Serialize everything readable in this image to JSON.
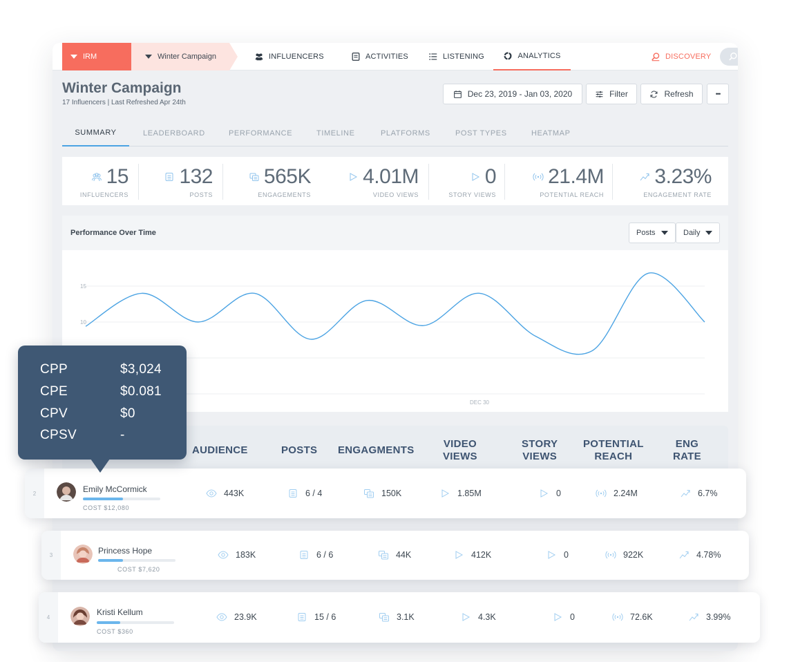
{
  "topbar": {
    "irm_label": "IRM",
    "campaign_label": "Winter Campaign",
    "nav": [
      {
        "label": "INFLUENCERS",
        "icon": "people-icon"
      },
      {
        "label": "ACTIVITIES",
        "icon": "document-icon"
      },
      {
        "label": "LISTENING",
        "icon": "list-icon"
      },
      {
        "label": "ANALYTICS",
        "icon": "analytics-icon"
      }
    ],
    "discovery_label": "DISCOVERY"
  },
  "header": {
    "title": "Winter Campaign",
    "subtitle": "17 Influencers | Last Refreshed Apr 24th",
    "date_range": "Dec 23, 2019 - Jan 03, 2020",
    "filter_label": "Filter",
    "refresh_label": "Refresh",
    "more_label": "•••"
  },
  "tabs": [
    "SUMMARY",
    "LEADERBOARD",
    "PERFORMANCE",
    "TIMELINE",
    "PLATFORMS",
    "POST TYPES",
    "HEATMAP"
  ],
  "stats": [
    {
      "value": "15",
      "label": "INFLUENCERS",
      "icon": "people-icon"
    },
    {
      "value": "132",
      "label": "POSTS",
      "icon": "document-icon"
    },
    {
      "value": "565K",
      "label": "ENGAGEMENTS",
      "icon": "chat-icon"
    },
    {
      "value": "4.01M",
      "label": "VIDEO VIEWS",
      "icon": "play-icon"
    },
    {
      "value": "0",
      "label": "STORY VIEWS",
      "icon": "play-icon"
    },
    {
      "value": "21.4M",
      "label": "POTENTIAL REACH",
      "icon": "broadcast-icon"
    },
    {
      "value": "3.23%",
      "label": "ENGAGEMENT RATE",
      "icon": "trend-icon"
    }
  ],
  "chart": {
    "title": "Performance Over Time",
    "metric_select": "Posts",
    "interval_select": "Daily"
  },
  "chart_data": {
    "type": "line",
    "title": "Performance Over Time",
    "ylabel": "",
    "xlabel": "",
    "y_ticks": [
      "15",
      "10"
    ],
    "x_tick_labels": [
      "DEC 30"
    ],
    "ylim": [
      0,
      20
    ],
    "series": [
      {
        "values": [
          9.4,
          14.0,
          10.0,
          14.0,
          7.6,
          13.0,
          9.5,
          14.0,
          8.0,
          6.0,
          16.8,
          10.0
        ]
      }
    ],
    "color": "#4ba3e3",
    "grid": true
  },
  "table": {
    "headers": [
      "AUDIENCE",
      "POSTS",
      "ENGAGMENTS",
      "VIDEO\nVIEWS",
      "STORY\nVIEWS",
      "POTENTIAL\nREACH",
      "ENG\nRATE"
    ],
    "rows": [
      {
        "index": "2",
        "name": "Emily McCormick",
        "cost": "COST $12,080",
        "cost_fill": 0.52,
        "audience": "443K",
        "posts": "6 / 4",
        "engagements": "150K",
        "video_views": "1.85M",
        "story_views": "0",
        "reach": "2.24M",
        "eng_rate": "6.7%"
      },
      {
        "index": "3",
        "name": "Princess Hope",
        "cost": "COST $7,620",
        "cost_fill": 0.32,
        "audience": "183K",
        "posts": "6 / 6",
        "engagements": "44K",
        "video_views": "412K",
        "story_views": "0",
        "reach": "922K",
        "eng_rate": "4.78%"
      },
      {
        "index": "4",
        "name": "Kristi Kellum",
        "cost": "COST $360",
        "cost_fill": 0.3,
        "audience": "23.9K",
        "posts": "15 / 6",
        "engagements": "3.1K",
        "video_views": "4.3K",
        "story_views": "0",
        "reach": "72.6K",
        "eng_rate": "3.99%"
      }
    ]
  },
  "tooltip": {
    "items": [
      {
        "label": "CPP",
        "value": "$3,024"
      },
      {
        "label": "CPE",
        "value": "$0.081"
      },
      {
        "label": "CPV",
        "value": "$0"
      },
      {
        "label": "CPSV",
        "value": "-"
      }
    ]
  },
  "colors": {
    "accent": "#f76d5e",
    "line": "#4ba3e3",
    "tooltip_bg": "#3f5874"
  }
}
